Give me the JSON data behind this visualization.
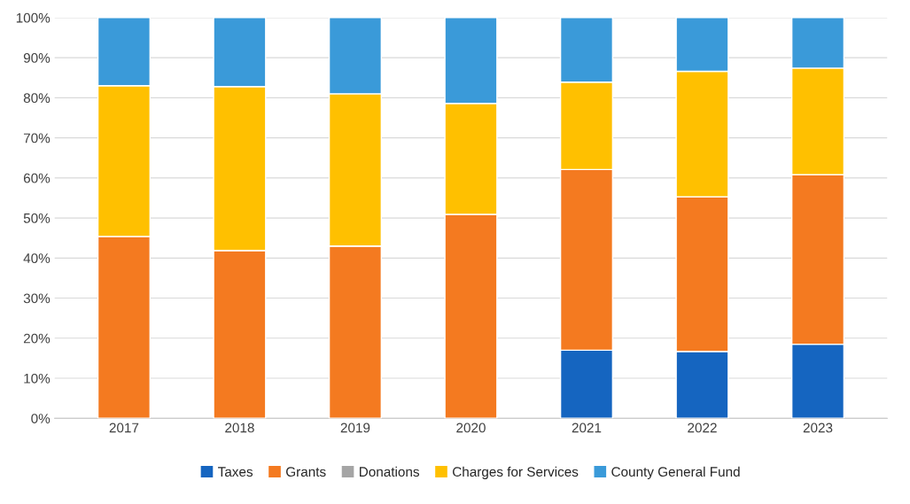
{
  "chart_data": {
    "type": "bar",
    "stacked": true,
    "categories": [
      "2017",
      "2018",
      "2019",
      "2020",
      "2021",
      "2022",
      "2023"
    ],
    "series": [
      {
        "name": "Taxes",
        "color": "#1565c0",
        "values": [
          0,
          0,
          0,
          0,
          17,
          16.7,
          18.5
        ]
      },
      {
        "name": "Grants",
        "color": "#f47a20",
        "values": [
          45.4,
          41.9,
          43,
          50.9,
          45.1,
          38.6,
          42.3
        ]
      },
      {
        "name": "Donations",
        "color": "#a5a5a5",
        "values": [
          0,
          0,
          0,
          0,
          0,
          0,
          0
        ]
      },
      {
        "name": "Charges for Services",
        "color": "#ffc000",
        "values": [
          37.6,
          40.9,
          38,
          27.7,
          21.8,
          31.3,
          26.6
        ]
      },
      {
        "name": "County General Fund",
        "color": "#3a9ad9",
        "values": [
          17,
          17.2,
          19,
          21.4,
          16.1,
          13.4,
          12.6
        ]
      }
    ],
    "ylim": [
      0,
      100
    ],
    "yticks": [
      {
        "value": 0,
        "label": "0%"
      },
      {
        "value": 10,
        "label": "10%"
      },
      {
        "value": 20,
        "label": "20%"
      },
      {
        "value": 30,
        "label": "30%"
      },
      {
        "value": 40,
        "label": "40%"
      },
      {
        "value": 50,
        "label": "50%"
      },
      {
        "value": 60,
        "label": "60%"
      },
      {
        "value": 70,
        "label": "70%"
      },
      {
        "value": 80,
        "label": "80%"
      },
      {
        "value": 90,
        "label": "90%"
      },
      {
        "value": 100,
        "label": "100%"
      }
    ],
    "grid": "y",
    "legend": "bottom"
  }
}
